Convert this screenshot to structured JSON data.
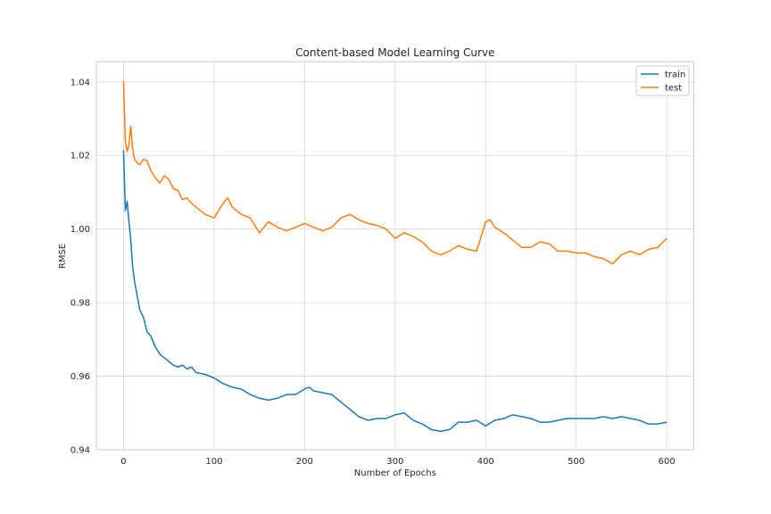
{
  "chart_data": {
    "type": "line",
    "title": "Content-based Model Learning Curve",
    "xlabel": "Number of Epochs",
    "ylabel": "RMSE",
    "xlim": [
      -30,
      630
    ],
    "ylim": [
      0.94,
      1.0455
    ],
    "xticks": [
      0,
      100,
      200,
      300,
      400,
      500,
      600
    ],
    "yticks": [
      0.94,
      0.96,
      0.98,
      1.0,
      1.02,
      1.04
    ],
    "ytick_labels": [
      "0.94",
      "0.96",
      "0.98",
      "1.00",
      "1.02",
      "1.04"
    ],
    "grid": true,
    "legend_position": "top-right",
    "series": [
      {
        "name": "train",
        "color": "#1f77b4",
        "x": [
          0,
          2,
          4,
          6,
          8,
          10,
          12,
          15,
          18,
          22,
          26,
          30,
          35,
          40,
          45,
          50,
          55,
          60,
          65,
          70,
          75,
          80,
          90,
          100,
          110,
          120,
          130,
          140,
          150,
          160,
          170,
          180,
          190,
          200,
          205,
          210,
          220,
          230,
          240,
          250,
          260,
          270,
          280,
          290,
          300,
          310,
          320,
          330,
          340,
          350,
          360,
          370,
          380,
          390,
          400,
          410,
          420,
          430,
          440,
          450,
          460,
          470,
          480,
          490,
          500,
          510,
          520,
          530,
          540,
          550,
          560,
          570,
          580,
          590,
          600
        ],
        "y": [
          1.0215,
          1.005,
          1.0075,
          1.002,
          0.997,
          0.99,
          0.986,
          0.982,
          0.978,
          0.976,
          0.972,
          0.971,
          0.968,
          0.966,
          0.965,
          0.964,
          0.963,
          0.9625,
          0.963,
          0.962,
          0.9625,
          0.961,
          0.9605,
          0.9595,
          0.958,
          0.957,
          0.9565,
          0.955,
          0.954,
          0.9535,
          0.954,
          0.955,
          0.955,
          0.9565,
          0.957,
          0.956,
          0.9555,
          0.955,
          0.953,
          0.951,
          0.949,
          0.948,
          0.9485,
          0.9485,
          0.9495,
          0.95,
          0.948,
          0.947,
          0.9455,
          0.945,
          0.9455,
          0.9475,
          0.9475,
          0.948,
          0.9465,
          0.948,
          0.9485,
          0.9495,
          0.949,
          0.9485,
          0.9475,
          0.9475,
          0.948,
          0.9485,
          0.9485,
          0.9485,
          0.9485,
          0.949,
          0.9485,
          0.949,
          0.9485,
          0.948,
          0.947,
          0.947,
          0.9475
        ]
      },
      {
        "name": "test",
        "color": "#ff7f0e",
        "x": [
          0,
          2,
          4,
          6,
          8,
          10,
          12,
          15,
          18,
          22,
          26,
          30,
          35,
          40,
          45,
          50,
          55,
          60,
          65,
          70,
          75,
          80,
          90,
          100,
          110,
          115,
          120,
          130,
          140,
          150,
          160,
          170,
          180,
          190,
          200,
          210,
          220,
          230,
          240,
          250,
          260,
          270,
          280,
          290,
          300,
          310,
          320,
          330,
          340,
          350,
          360,
          370,
          380,
          390,
          400,
          405,
          410,
          420,
          430,
          440,
          450,
          460,
          470,
          480,
          490,
          500,
          510,
          520,
          530,
          540,
          550,
          560,
          570,
          580,
          590,
          600
        ],
        "y": [
          1.0402,
          1.024,
          1.021,
          1.023,
          1.028,
          1.022,
          1.019,
          1.018,
          1.0175,
          1.019,
          1.0185,
          1.016,
          1.014,
          1.0125,
          1.0145,
          1.0135,
          1.011,
          1.0105,
          1.008,
          1.0085,
          1.007,
          1.006,
          1.004,
          1.003,
          1.007,
          1.0085,
          1.006,
          1.004,
          1.003,
          0.999,
          1.002,
          1.0005,
          0.9995,
          1.0005,
          1.0015,
          1.0005,
          0.9995,
          1.0005,
          1.003,
          1.004,
          1.0025,
          1.0015,
          1.001,
          1.0,
          0.9975,
          0.999,
          0.998,
          0.9965,
          0.994,
          0.993,
          0.994,
          0.9955,
          0.9945,
          0.994,
          1.002,
          1.0025,
          1.0005,
          0.999,
          0.997,
          0.995,
          0.995,
          0.9965,
          0.996,
          0.994,
          0.994,
          0.9935,
          0.9935,
          0.9925,
          0.992,
          0.9905,
          0.993,
          0.994,
          0.993,
          0.9945,
          0.995,
          0.9975
        ]
      }
    ]
  }
}
